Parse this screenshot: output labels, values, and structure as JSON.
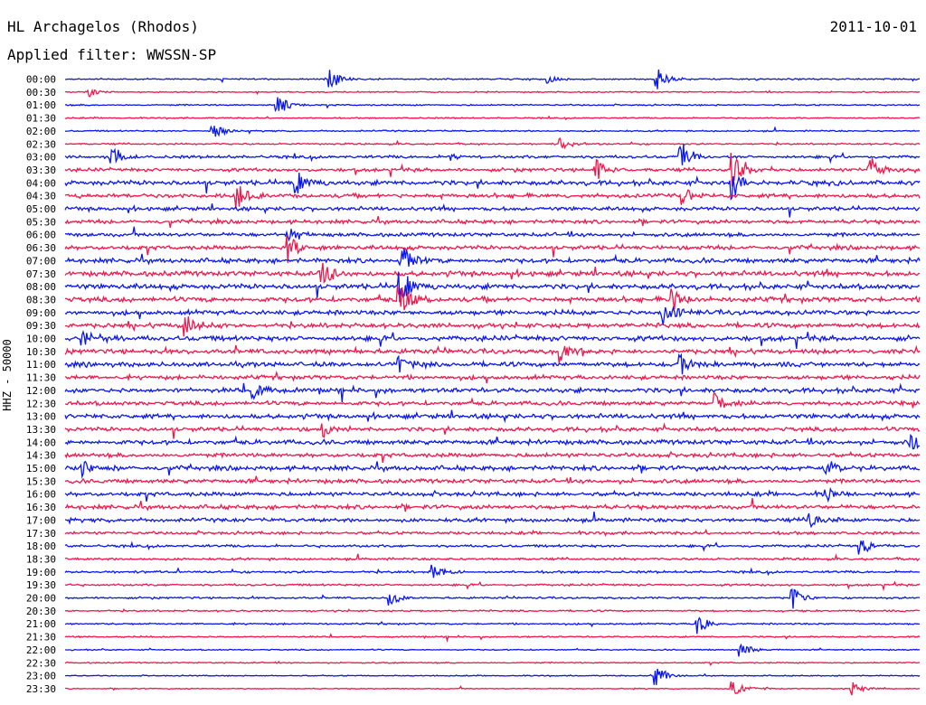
{
  "header": {
    "station": "HL Archagelos (Rhodos)",
    "date": "2011-10-01",
    "filter": "Applied filter: WWSSN-SP"
  },
  "chart_data": {
    "type": "line",
    "title": "HL Archagelos (Rhodos)",
    "subtitle": "Applied filter: WWSSN-SP",
    "ylabel": "HHZ - 50000",
    "xlabel": "",
    "grid": false,
    "rows": [
      "00:00",
      "00:30",
      "01:00",
      "01:30",
      "02:00",
      "02:30",
      "03:00",
      "03:30",
      "04:00",
      "04:30",
      "05:00",
      "05:30",
      "06:00",
      "06:30",
      "07:00",
      "07:30",
      "08:00",
      "08:30",
      "09:00",
      "09:30",
      "10:00",
      "10:30",
      "11:00",
      "11:30",
      "12:00",
      "12:30",
      "13:00",
      "13:30",
      "14:00",
      "14:30",
      "15:00",
      "15:30",
      "16:00",
      "16:30",
      "17:00",
      "17:30",
      "18:00",
      "18:30",
      "19:00",
      "19:30",
      "20:00",
      "20:30",
      "21:00",
      "21:30",
      "22:00",
      "22:30",
      "23:00",
      "23:30"
    ],
    "colors": {
      "even_rows": "#0a17f2",
      "odd_rows": "#f2174b"
    },
    "row_noise": [
      0.7,
      0.6,
      0.7,
      0.6,
      0.7,
      0.8,
      1.4,
      1.6,
      2.2,
      2.0,
      1.8,
      1.8,
      1.8,
      2.0,
      2.2,
      2.4,
      2.4,
      2.4,
      2.2,
      2.2,
      2.4,
      2.2,
      2.2,
      2.0,
      2.2,
      2.0,
      2.2,
      2.0,
      2.2,
      2.0,
      2.2,
      2.0,
      2.0,
      2.0,
      1.8,
      1.4,
      1.2,
      1.1,
      1.1,
      1.0,
      0.9,
      0.8,
      0.8,
      0.7,
      0.6,
      0.6,
      0.5,
      0.5
    ],
    "events": [
      {
        "row": 0,
        "t": 0.31,
        "amp": 14
      },
      {
        "row": 0,
        "t": 0.565,
        "amp": 6
      },
      {
        "row": 0,
        "t": 0.692,
        "amp": 16
      },
      {
        "row": 1,
        "t": 0.028,
        "amp": 6
      },
      {
        "row": 2,
        "t": 0.248,
        "amp": 15
      },
      {
        "row": 4,
        "t": 0.17,
        "amp": 14
      },
      {
        "row": 5,
        "t": 0.58,
        "amp": 8
      },
      {
        "row": 6,
        "t": 0.054,
        "amp": 16
      },
      {
        "row": 6,
        "t": 0.45,
        "amp": 8
      },
      {
        "row": 6,
        "t": 0.72,
        "amp": 22
      },
      {
        "row": 7,
        "t": 0.62,
        "amp": 20
      },
      {
        "row": 7,
        "t": 0.78,
        "amp": 24
      },
      {
        "row": 7,
        "t": 0.94,
        "amp": 18
      },
      {
        "row": 8,
        "t": 0.27,
        "amp": 16
      },
      {
        "row": 8,
        "t": 0.78,
        "amp": 22
      },
      {
        "row": 9,
        "t": 0.2,
        "amp": 20
      },
      {
        "row": 9,
        "t": 0.72,
        "amp": 16
      },
      {
        "row": 12,
        "t": 0.26,
        "amp": 10
      },
      {
        "row": 13,
        "t": 0.26,
        "amp": 22
      },
      {
        "row": 14,
        "t": 0.39,
        "amp": 30
      },
      {
        "row": 15,
        "t": 0.3,
        "amp": 18
      },
      {
        "row": 16,
        "t": 0.39,
        "amp": 30
      },
      {
        "row": 17,
        "t": 0.39,
        "amp": 26
      },
      {
        "row": 17,
        "t": 0.71,
        "amp": 16
      },
      {
        "row": 18,
        "t": 0.7,
        "amp": 18
      },
      {
        "row": 19,
        "t": 0.14,
        "amp": 14
      },
      {
        "row": 20,
        "t": 0.02,
        "amp": 12
      },
      {
        "row": 21,
        "t": 0.58,
        "amp": 14
      },
      {
        "row": 22,
        "t": 0.39,
        "amp": 12
      },
      {
        "row": 22,
        "t": 0.72,
        "amp": 14
      },
      {
        "row": 24,
        "t": 0.22,
        "amp": 10
      },
      {
        "row": 25,
        "t": 0.76,
        "amp": 14
      },
      {
        "row": 27,
        "t": 0.3,
        "amp": 14
      },
      {
        "row": 28,
        "t": 0.99,
        "amp": 14
      },
      {
        "row": 30,
        "t": 0.02,
        "amp": 12
      },
      {
        "row": 30,
        "t": 0.89,
        "amp": 12
      },
      {
        "row": 32,
        "t": 0.89,
        "amp": 12
      },
      {
        "row": 34,
        "t": 0.87,
        "amp": 12
      },
      {
        "row": 36,
        "t": 0.93,
        "amp": 12
      },
      {
        "row": 38,
        "t": 0.43,
        "amp": 10
      },
      {
        "row": 40,
        "t": 0.38,
        "amp": 10
      },
      {
        "row": 40,
        "t": 0.85,
        "amp": 14
      },
      {
        "row": 42,
        "t": 0.74,
        "amp": 12
      },
      {
        "row": 44,
        "t": 0.79,
        "amp": 10
      },
      {
        "row": 46,
        "t": 0.69,
        "amp": 14
      },
      {
        "row": 47,
        "t": 0.78,
        "amp": 12
      },
      {
        "row": 47,
        "t": 0.92,
        "amp": 10
      }
    ]
  }
}
